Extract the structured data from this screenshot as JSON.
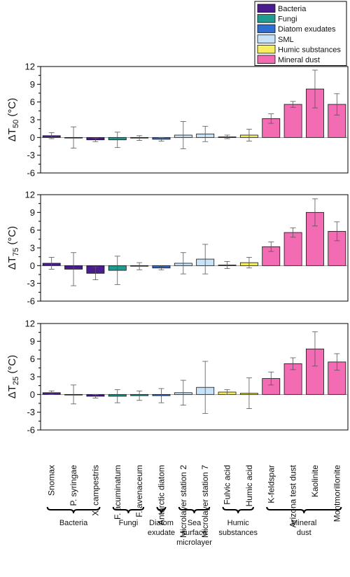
{
  "chart_data": {
    "type": "bar",
    "categories": [
      "Snomax",
      "P. syringae",
      "X. campestris",
      "F. acuminatum",
      "F. avenaceum",
      "Antarctic diatom",
      "Microlayer station 2",
      "Microlayer station 7",
      "Fulvic acid",
      "Humic acid",
      "K-feldspar",
      "Arizona test dust",
      "Kaolinite",
      "Montmorillonite"
    ],
    "category_groups": [
      "Bacteria",
      "Bacteria",
      "Bacteria",
      "Fungi",
      "Fungi",
      "Diatom exudates",
      "SML",
      "SML",
      "Humic substances",
      "Humic substances",
      "Mineral dust",
      "Mineral dust",
      "Mineral dust",
      "Mineral dust"
    ],
    "legend": [
      {
        "name": "Bacteria",
        "color": "#4b1c8f"
      },
      {
        "name": "Fungi",
        "color": "#1f9b8f"
      },
      {
        "name": "Diatom exudates",
        "color": "#2f6fd1"
      },
      {
        "name": "SML",
        "color": "#c8e3f8"
      },
      {
        "name": "Humic substances",
        "color": "#f7ef5f"
      },
      {
        "name": "Mineral dust",
        "color": "#f36bb3"
      }
    ],
    "legend_placement": "top-right",
    "ylim": [
      -6,
      12
    ],
    "yticks": [
      -6,
      -3,
      0,
      3,
      6,
      9,
      12
    ],
    "panels": [
      {
        "ylabel_base": "ΔT",
        "ylabel_sub": "50",
        "ylabel_unit": " (°C)",
        "values": [
          0.3,
          0.0,
          -0.4,
          -0.4,
          -0.1,
          -0.3,
          0.4,
          0.6,
          0.1,
          0.4,
          3.2,
          5.6,
          8.2,
          5.6
        ],
        "errors": [
          0.5,
          1.8,
          0.3,
          1.3,
          0.4,
          0.3,
          2.3,
          1.3,
          0.3,
          1.0,
          0.8,
          0.5,
          3.2,
          1.8
        ]
      },
      {
        "ylabel_base": "ΔT",
        "ylabel_sub": "75",
        "ylabel_unit": " (°C)",
        "values": [
          0.4,
          -0.6,
          -1.3,
          -0.8,
          -0.1,
          -0.4,
          0.4,
          1.1,
          0.1,
          0.5,
          3.2,
          5.6,
          9.0,
          5.8
        ],
        "errors": [
          1.0,
          2.8,
          1.1,
          2.4,
          0.6,
          0.3,
          1.8,
          2.5,
          0.6,
          0.9,
          0.8,
          0.8,
          2.3,
          1.6
        ]
      },
      {
        "ylabel_base": "ΔT",
        "ylabel_sub": "25",
        "ylabel_unit": " (°C)",
        "values": [
          0.3,
          0.0,
          -0.3,
          -0.3,
          -0.2,
          -0.2,
          0.3,
          1.2,
          0.4,
          0.2,
          2.7,
          5.2,
          7.7,
          5.5
        ],
        "errors": [
          0.3,
          1.6,
          0.3,
          1.1,
          0.8,
          1.2,
          2.1,
          4.4,
          0.4,
          2.6,
          1.1,
          1.0,
          2.9,
          1.4
        ]
      }
    ],
    "group_labels": [
      {
        "lines": [
          "Bacteria"
        ],
        "from": 0,
        "to": 2
      },
      {
        "lines": [
          "Fungi"
        ],
        "from": 3,
        "to": 4
      },
      {
        "lines": [
          "Diatom",
          "exudate"
        ],
        "from": 5,
        "to": 5
      },
      {
        "lines": [
          "Sea",
          "surface",
          "microlayer"
        ],
        "from": 6,
        "to": 7
      },
      {
        "lines": [
          "Humic",
          "substances"
        ],
        "from": 8,
        "to": 9
      },
      {
        "lines": [
          "Mineral",
          "dust"
        ],
        "from": 10,
        "to": 13
      }
    ]
  }
}
